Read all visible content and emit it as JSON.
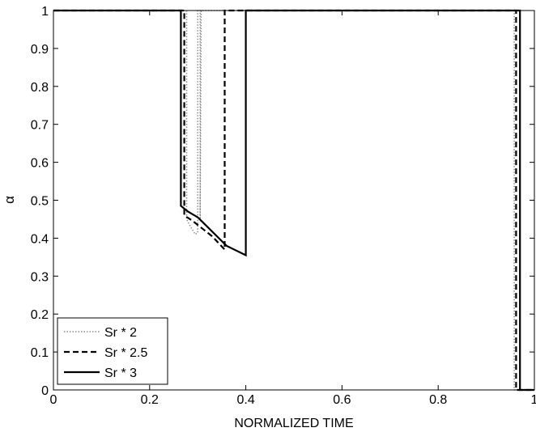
{
  "chart_data": {
    "type": "line",
    "title": "",
    "xlabel": "NORMALIZED TIME",
    "ylabel": "α",
    "xlim": [
      0,
      1
    ],
    "ylim": [
      0,
      1
    ],
    "xticks": [
      0,
      0.2,
      0.4,
      0.6,
      0.8,
      1
    ],
    "xtick_labels": [
      "0",
      "0.2",
      "0.4",
      "0.6",
      "0.8",
      "1"
    ],
    "yticks": [
      0,
      0.1,
      0.2,
      0.3,
      0.4,
      0.5,
      0.6,
      0.7,
      0.8,
      0.9,
      1
    ],
    "ytick_labels": [
      "0",
      "0.1",
      "0.2",
      "0.3",
      "0.4",
      "0.5",
      "0.6",
      "0.7",
      "0.8",
      "0.9",
      "1"
    ],
    "grid": false,
    "legend_position": "bottom-left",
    "series": [
      {
        "name": "Sr * 2",
        "style": "dotted",
        "color": "#8c8c8c",
        "x": [
          0,
          0.277,
          0.277,
          0.285,
          0.29,
          0.295,
          0.3,
          0.3,
          0.305,
          0.305,
          0.307,
          0.31,
          0.315,
          0.32,
          0.325,
          0.33,
          0.335,
          0.34,
          0.345,
          0.35,
          0.355,
          0.36,
          0.365,
          0.37,
          0.375,
          0.38,
          0.385,
          0.39,
          0.395,
          0.4,
          0.405,
          0.41,
          0.415,
          0.42,
          0.425,
          0.43,
          0.435,
          0.44,
          0.445,
          0.45,
          0.455,
          0.46,
          0.465,
          0.47,
          0.475,
          0.48,
          0.485,
          0.49,
          0.495,
          0.5,
          0.505,
          0.51,
          0.515,
          0.52,
          0.525,
          0.53,
          0.535,
          0.54,
          0.545,
          0.55,
          0.555,
          0.56,
          0.565,
          0.57,
          0.575,
          0.58,
          0.585,
          0.59,
          0.595,
          0.6,
          0.605,
          0.61,
          0.615,
          0.62,
          0.625,
          0.63,
          0.635,
          0.64,
          0.645,
          0.65,
          0.655,
          0.66,
          0.665,
          0.67,
          0.675,
          0.68,
          0.685,
          0.69,
          0.695,
          0.7,
          0.705,
          0.71,
          0.715,
          0.72,
          0.725,
          0.73,
          0.735,
          0.74,
          0.745,
          0.75,
          0.755,
          0.76,
          0.765,
          0.77,
          0.775,
          0.78,
          0.785,
          0.79,
          0.795,
          0.8,
          0.805,
          0.81,
          0.815,
          0.82,
          0.825,
          0.83,
          0.835,
          0.84,
          0.845,
          0.85,
          0.855,
          0.86,
          0.865,
          0.87,
          0.875,
          0.88,
          0.885,
          0.89,
          0.895,
          0.9,
          0.905,
          0.91,
          0.915,
          0.92,
          0.925,
          0.93,
          0.935,
          0.94,
          0.945,
          0.95,
          0.953,
          0.958,
          0.958,
          1
        ],
        "y": [
          1,
          1,
          0.45,
          0.43,
          0.42,
          0.41,
          0.415,
          1,
          1,
          0.45,
          1,
          1,
          1,
          1,
          1,
          1,
          1,
          1,
          1,
          1,
          1,
          1,
          1,
          1,
          1,
          1,
          1,
          1,
          1,
          1,
          1,
          1,
          1,
          1,
          1,
          1,
          1,
          1,
          1,
          1,
          1,
          1,
          1,
          1,
          1,
          1,
          1,
          1,
          1,
          1,
          1,
          1,
          1,
          1,
          1,
          1,
          1,
          1,
          1,
          1,
          1,
          1,
          1,
          1,
          1,
          1,
          1,
          1,
          1,
          1,
          1,
          1,
          1,
          1,
          1,
          1,
          1,
          1,
          1,
          1,
          1,
          1,
          1,
          1,
          1,
          1,
          1,
          1,
          1,
          1,
          1,
          1,
          1,
          1,
          1,
          1,
          1,
          1,
          1,
          1,
          1,
          1,
          1,
          1,
          1,
          1,
          1,
          1,
          1,
          1,
          1,
          1,
          1,
          1,
          1,
          1,
          1,
          1,
          1,
          1,
          1,
          1,
          1,
          1,
          1,
          1,
          1,
          1,
          1,
          1,
          1,
          1,
          1,
          1,
          1,
          1,
          1,
          1,
          1,
          1,
          1,
          1,
          0,
          0
        ]
      },
      {
        "name": "Sr * 2.5",
        "style": "dashed",
        "color": "#000000",
        "x": [
          0,
          0.272,
          0.272,
          0.29,
          0.31,
          0.33,
          0.356,
          0.356,
          0.962,
          0.962,
          1
        ],
        "y": [
          1,
          1,
          0.46,
          0.445,
          0.425,
          0.405,
          0.37,
          1,
          1,
          0,
          0
        ],
        "note_hidden": ""
      },
      {
        "name": "Sr * 3",
        "style": "solid",
        "color": "#000000",
        "x": [
          0,
          0.265,
          0.265,
          0.28,
          0.3,
          0.32,
          0.34,
          0.36,
          0.4,
          0.4,
          0.97,
          0.97,
          1
        ],
        "y": [
          1,
          1,
          0.485,
          0.47,
          0.455,
          0.43,
          0.405,
          0.38,
          0.355,
          1,
          1,
          0,
          0
        ]
      }
    ]
  }
}
